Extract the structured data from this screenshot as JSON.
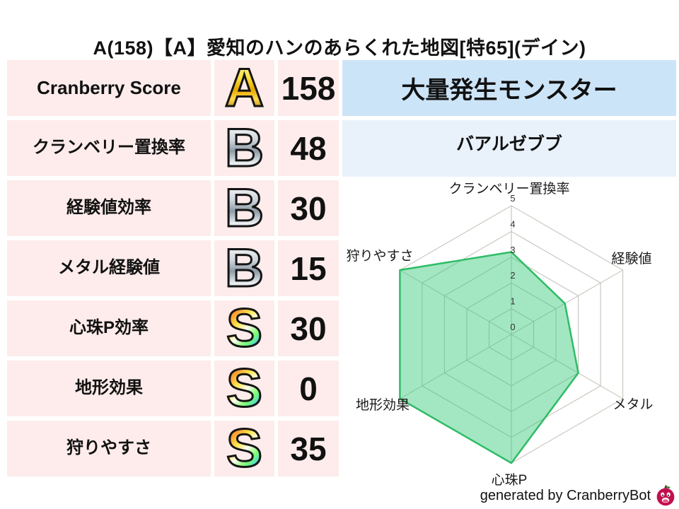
{
  "title": "A(158)【A】愛知のハンのあらくれた地図[特65](デイン)",
  "stats_table": {
    "rows": [
      {
        "label": "Cranberry Score",
        "rank": "A",
        "value": "158"
      },
      {
        "label": "クランベリー置換率",
        "rank": "B",
        "value": "48"
      },
      {
        "label": "経験値効率",
        "rank": "B",
        "value": "30"
      },
      {
        "label": "メタル経験値",
        "rank": "B",
        "value": "15"
      },
      {
        "label": "心珠P効率",
        "rank": "S",
        "value": "30"
      },
      {
        "label": "地形効果",
        "rank": "S",
        "value": "0"
      },
      {
        "label": "狩りやすさ",
        "rank": "S",
        "value": "35"
      }
    ]
  },
  "monster_panel": {
    "header": "大量発生モンスター",
    "value": "バアルゼブブ"
  },
  "chart_data": {
    "type": "radar",
    "title": "",
    "categories": [
      "クランベリー置換率",
      "経験値",
      "メタル",
      "心珠P",
      "地形効果",
      "狩りやすさ"
    ],
    "values": [
      3.2,
      2.4,
      3,
      5,
      5,
      5
    ],
    "tick_labels": [
      "5",
      "4",
      "3",
      "2",
      "1",
      "0"
    ],
    "range": [
      0,
      5
    ],
    "grid": true,
    "legend": "none",
    "fill_color": "#34c777",
    "fill_opacity": 0.45,
    "stroke_color": "#2fbc67",
    "grid_color": "#c2beb6",
    "tick_color": "#333333",
    "label_color": "#1a1a1a"
  },
  "footer": {
    "credit": "generated by CranberryBot"
  },
  "colors": {
    "row_primary_bg": "#f9c6c9",
    "row_bg": "#fdeceb",
    "monster_header_bg": "#cce4f7",
    "monster_value_bg": "#e9f2fb",
    "rank_a": "gold",
    "rank_b": "silver",
    "rank_s": "rainbow"
  }
}
